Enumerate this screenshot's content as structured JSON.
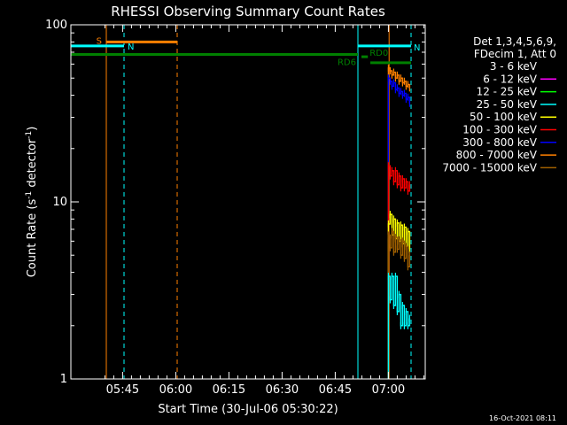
{
  "chart_data": {
    "type": "line",
    "title": "RHESSI Observing Summary Count Rates",
    "xlabel": "Start Time (30-Jul-06 05:30:22)",
    "ylabel": "Count Rate (s",
    "ylabel_sup1": "-1",
    "ylabel_mid": " detector",
    "ylabel_sup2": "-1",
    "ylabel_end": ")",
    "x_unit": "minutes since 05:30:22",
    "xlim": [
      0,
      100
    ],
    "ylim": [
      1,
      100
    ],
    "yscale": "log",
    "x_ticks": [
      {
        "value": 14.6,
        "label": "05:45"
      },
      {
        "value": 29.6,
        "label": "06:00"
      },
      {
        "value": 44.6,
        "label": "06:15"
      },
      {
        "value": 59.6,
        "label": "06:30"
      },
      {
        "value": 74.6,
        "label": "06:45"
      },
      {
        "value": 89.6,
        "label": "07:00"
      }
    ],
    "y_ticks": [
      {
        "value": 1,
        "label": "1"
      },
      {
        "value": 10,
        "label": "10"
      },
      {
        "value": 100,
        "label": "100"
      }
    ],
    "legend": {
      "placement": "right",
      "header": [
        "Det 1,3,4,5,6,9,",
        "FDecim 1, Att 0"
      ],
      "entries": [
        {
          "name": "3 - 6 keV",
          "color": "#000000"
        },
        {
          "name": "6 - 12 keV",
          "color": "#ff00ff"
        },
        {
          "name": "12 - 25 keV",
          "color": "#00ff00"
        },
        {
          "name": "25 - 50 keV",
          "color": "#00ffff"
        },
        {
          "name": "50 - 100 keV",
          "color": "#ffff00"
        },
        {
          "name": "100 - 300 keV",
          "color": "#ff0000"
        },
        {
          "name": "300 - 800 keV",
          "color": "#0000ff"
        },
        {
          "name": "800 - 7000 keV",
          "color": "#ff8000"
        },
        {
          "name": "7000 - 15000 keV",
          "color": "#a06000"
        }
      ]
    },
    "flags": [
      {
        "label": "S",
        "color": "#ff8000",
        "x0": 10,
        "x1": 30,
        "y": 80,
        "label_side": "left"
      },
      {
        "label": "N",
        "color": "#00ffff",
        "x0": 0,
        "x1": 15,
        "y": 76,
        "label_side": "right"
      },
      {
        "label": "N",
        "color": "#00ffff",
        "x0": 81,
        "x1": 96,
        "y": 76,
        "label_side": "none"
      },
      {
        "label": "RD0",
        "color": "#008000",
        "x0": 82,
        "x1": 83.8,
        "y": 66,
        "label_side": "right"
      },
      {
        "label": "RD6",
        "color": "#008000",
        "x0": 0,
        "x1": 81,
        "y": 68,
        "label_side": "below-right"
      },
      {
        "label": "",
        "color": "#008000",
        "x0": 84.5,
        "x1": 96,
        "y": 61,
        "label_side": "none"
      }
    ],
    "vlines": [
      {
        "x": 0,
        "color": "#00ffff",
        "style": "solid"
      },
      {
        "x": 10,
        "color": "#ff8000",
        "style": "solid"
      },
      {
        "x": 15,
        "color": "#00ffff",
        "style": "dashed"
      },
      {
        "x": 30,
        "color": "#ff8000",
        "style": "dashed"
      },
      {
        "x": 81,
        "color": "#00ffff",
        "style": "solid"
      },
      {
        "x": 89.8,
        "color": "#ff8000",
        "style": "solid"
      },
      {
        "x": 96,
        "color": "#00ffff",
        "style": "dashed"
      }
    ],
    "series": [
      {
        "name": "800 - 7000 keV",
        "color": "#ff8000",
        "x": [
          89.6,
          90.1,
          90.6,
          91.1,
          91.6,
          92.1,
          92.6,
          93.1,
          93.6,
          94.1,
          94.6,
          95.1,
          95.6
        ],
        "y": [
          57,
          55,
          52,
          54,
          50,
          52,
          48,
          50,
          47,
          48,
          45,
          46,
          44
        ]
      },
      {
        "name": "300 - 800 keV",
        "color": "#0000ff",
        "x": [
          89.6,
          90.1,
          90.6,
          91.1,
          91.6,
          92.1,
          92.6,
          93.1,
          93.6,
          94.1,
          94.6,
          95.1,
          95.6
        ],
        "y": [
          50,
          48,
          45,
          47,
          43,
          44,
          41,
          42,
          40,
          41,
          38,
          39,
          36
        ]
      },
      {
        "name": "100 - 300 keV",
        "color": "#ff0000",
        "x": [
          89.6,
          90.1,
          90.6,
          91.1,
          91.6,
          92.1,
          92.6,
          93.1,
          93.6,
          94.1,
          94.6,
          95.1,
          95.6
        ],
        "y": [
          16,
          14,
          15,
          13,
          15,
          12.5,
          14,
          12,
          13.5,
          12,
          13,
          11.5,
          12.5
        ]
      },
      {
        "name": "50 - 100 keV",
        "color": "#ffff00",
        "x": [
          89.6,
          90.1,
          90.6,
          91.1,
          91.6,
          92.1,
          92.6,
          93.1,
          93.6,
          94.1,
          94.6,
          95.1,
          95.6
        ],
        "y": [
          7.5,
          8.5,
          6.5,
          8,
          6.2,
          7.6,
          6,
          7.4,
          5.8,
          7.2,
          5.6,
          6.8,
          5.4
        ]
      },
      {
        "name": "7000 - 15000 keV",
        "color": "#a06000",
        "x": [
          89.6,
          90.1,
          90.6,
          91.1,
          91.6,
          92.1,
          92.6,
          93.1,
          93.6,
          94.1,
          94.6,
          95.1,
          95.6
        ],
        "y": [
          6.5,
          5.5,
          6.8,
          5.2,
          6.3,
          5.4,
          6.1,
          5,
          6,
          4.8,
          5.6,
          4.3,
          5
        ]
      },
      {
        "name": "25 - 50 keV",
        "color": "#00ffff",
        "x": [
          89.6,
          90.1,
          90.6,
          91.1,
          91.6,
          92.1,
          92.6,
          93.1,
          93.6,
          94.1,
          94.6,
          95.1,
          95.6
        ],
        "y": [
          3.8,
          2.8,
          3.8,
          2.6,
          3.8,
          2.4,
          3,
          2,
          2.6,
          2,
          2.4,
          2,
          2.2
        ]
      }
    ]
  },
  "footer": {
    "timestamp": "16-Oct-2021 08:11"
  }
}
